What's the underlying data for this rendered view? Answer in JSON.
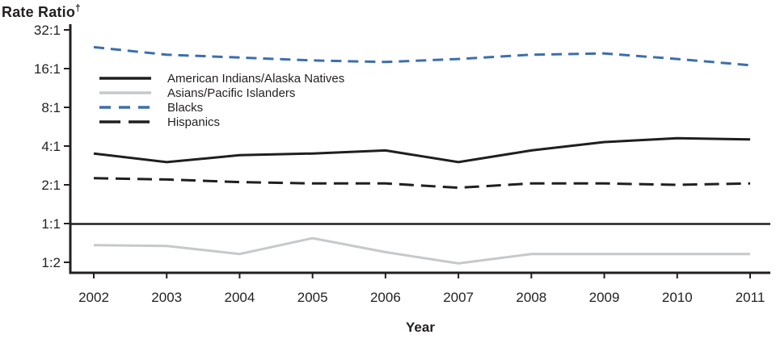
{
  "chart": {
    "title": "Rate Ratio",
    "title_sup": "†"
  },
  "chart_data": {
    "type": "line",
    "title": "Rate Ratio†",
    "xlabel": "Year",
    "ylabel": "Rate Ratio",
    "y_scale": "log2",
    "grid": false,
    "legend_position": "inside-upper-left",
    "reference_line_value": 1,
    "y_ticks": [
      {
        "label": "32:1",
        "value": 32
      },
      {
        "label": "16:1",
        "value": 16
      },
      {
        "label": "8:1",
        "value": 8
      },
      {
        "label": "4:1",
        "value": 4
      },
      {
        "label": "2:1",
        "value": 2
      },
      {
        "label": "1:1",
        "value": 1
      },
      {
        "label": "1:2",
        "value": 0.5
      }
    ],
    "ylim": [
      0.42,
      40
    ],
    "x": [
      2002,
      2003,
      2004,
      2005,
      2006,
      2007,
      2008,
      2009,
      2010,
      2011
    ],
    "series": [
      {
        "name": "American Indians/Alaska Natives",
        "color": "#1f1f1f",
        "dash": "solid",
        "values": [
          3.5,
          3.0,
          3.4,
          3.5,
          3.7,
          3.0,
          3.7,
          4.3,
          4.6,
          4.5
        ]
      },
      {
        "name": "Asians/Pacific Islanders",
        "color": "#c7c8ca",
        "dash": "solid",
        "values": [
          0.68,
          0.67,
          0.58,
          0.77,
          0.6,
          0.49,
          0.58,
          0.58,
          0.58,
          0.58
        ]
      },
      {
        "name": "Blacks",
        "color": "#3c6fad",
        "dash": "dashed",
        "values": [
          23.5,
          20.5,
          19.5,
          18.5,
          18.0,
          19.0,
          20.5,
          21.0,
          19.0,
          17.0
        ]
      },
      {
        "name": "Hispanics",
        "color": "#1f1f1f",
        "dash": "long-dash",
        "values": [
          2.25,
          2.2,
          2.1,
          2.05,
          2.05,
          1.9,
          2.05,
          2.05,
          2.0,
          2.05
        ]
      }
    ],
    "colors": {
      "axis": "#231f20",
      "text": "#231f20",
      "blue_series": "#3c6fad",
      "gray_series": "#c7c8ca"
    }
  }
}
